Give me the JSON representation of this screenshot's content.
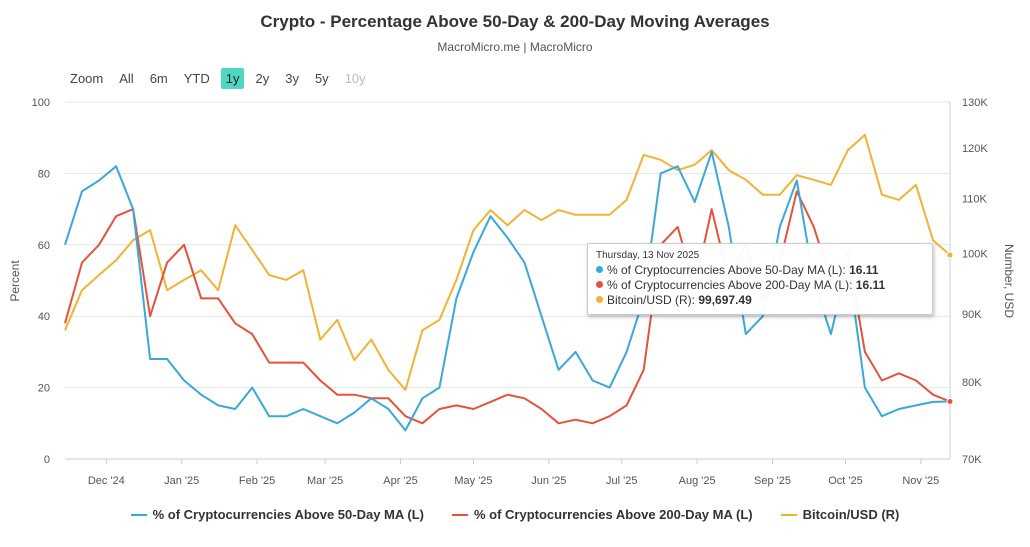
{
  "header": {
    "title": "Crypto - Percentage Above 50-Day & 200-Day Moving Averages",
    "subtitle": "MacroMicro.me | MacroMicro"
  },
  "range_selector": {
    "label": "Zoom",
    "buttons": [
      {
        "label": "All"
      },
      {
        "label": "6m"
      },
      {
        "label": "YTD"
      },
      {
        "label": "1y",
        "selected": true
      },
      {
        "label": "2y"
      },
      {
        "label": "3y"
      },
      {
        "label": "5y"
      },
      {
        "label": "10y",
        "disabled": true
      }
    ]
  },
  "tooltip": {
    "date": "Thursday, 13 Nov 2025",
    "rows": [
      {
        "label": "% of Cryptocurrencies Above 50-Day MA (L): ",
        "value": "16.11"
      },
      {
        "label": "% of Cryptocurrencies Above 200-Day MA (L): ",
        "value": "16.11"
      },
      {
        "label": "Bitcoin/USD (R): ",
        "value": "99,697.49"
      }
    ]
  },
  "chart_data": {
    "type": "line",
    "title": "Crypto - Percentage Above 50-Day & 200-Day Moving Averages",
    "xrange": [
      "2024-11-14",
      "2025-11-13"
    ],
    "x_ticks": [
      {
        "label": "Dec '24",
        "date": "2024-12-01"
      },
      {
        "label": "Jan '25",
        "date": "2025-01-01"
      },
      {
        "label": "Feb '25",
        "date": "2025-02-01"
      },
      {
        "label": "Mar '25",
        "date": "2025-03-01"
      },
      {
        "label": "Apr '25",
        "date": "2025-04-01"
      },
      {
        "label": "May '25",
        "date": "2025-05-01"
      },
      {
        "label": "Jun '25",
        "date": "2025-06-01"
      },
      {
        "label": "Jul '25",
        "date": "2025-07-01"
      },
      {
        "label": "Aug '25",
        "date": "2025-08-01"
      },
      {
        "label": "Sep '25",
        "date": "2025-09-01"
      },
      {
        "label": "Oct '25",
        "date": "2025-10-01"
      },
      {
        "label": "Nov '25",
        "date": "2025-11-01"
      }
    ],
    "y_left": {
      "label": "Percent",
      "range": [
        0,
        100
      ],
      "ticks": [
        "0",
        "20",
        "40",
        "60",
        "80",
        "100"
      ],
      "tick_values": [
        0,
        20,
        40,
        60,
        80,
        100
      ]
    },
    "y_right": {
      "label": "Number, USD",
      "scale": "log",
      "range": [
        70000,
        130000
      ],
      "ticks": [
        "70K",
        "80K",
        "90K",
        "100K",
        "110K",
        "120K",
        "130K"
      ],
      "tick_values": [
        70000,
        80000,
        90000,
        100000,
        110000,
        120000,
        130000
      ]
    },
    "grid": true,
    "legend_position": "bottom",
    "series": [
      {
        "name": "% of Cryptocurrencies Above 50-Day MA (L)",
        "axis": "left",
        "color": "#3aa8d8",
        "values": [
          60,
          75,
          78,
          82,
          70,
          28,
          28,
          22,
          18,
          15,
          14,
          20,
          12,
          12,
          14,
          12,
          10,
          13,
          17,
          14,
          8,
          17,
          20,
          45,
          58,
          68,
          62,
          55,
          40,
          25,
          30,
          22,
          20,
          30,
          45,
          80,
          82,
          72,
          86,
          65,
          35,
          40,
          65,
          78,
          50,
          35,
          55,
          20,
          12,
          14,
          15,
          16,
          16.11
        ]
      },
      {
        "name": "% of Cryptocurrencies Above 200-Day MA (L)",
        "axis": "left",
        "color": "#e4533a",
        "values": [
          38,
          55,
          60,
          68,
          70,
          40,
          55,
          60,
          45,
          45,
          38,
          35,
          27,
          27,
          27,
          22,
          18,
          18,
          17,
          17,
          12,
          10,
          14,
          15,
          14,
          16,
          18,
          17,
          14,
          10,
          11,
          10,
          12,
          15,
          25,
          60,
          65,
          48,
          70,
          50,
          60,
          45,
          55,
          75,
          65,
          50,
          58,
          30,
          22,
          24,
          22,
          18,
          16.11
        ]
      },
      {
        "name": "Bitcoin/USD (R)",
        "axis": "right",
        "color": "#f2b233",
        "values": [
          87500,
          93800,
          96300,
          98800,
          102300,
          104100,
          93800,
          95500,
          97100,
          93800,
          105000,
          100600,
          96300,
          95500,
          97100,
          86100,
          89100,
          83100,
          86100,
          81700,
          78900,
          87500,
          89100,
          95500,
          104100,
          107800,
          105000,
          107800,
          105900,
          107800,
          106900,
          106900,
          106900,
          109700,
          118600,
          117600,
          115500,
          116600,
          119600,
          115500,
          113600,
          110700,
          110700,
          114500,
          113600,
          112600,
          119600,
          122800,
          110700,
          109700,
          112600,
          102300,
          99697.49
        ]
      }
    ]
  },
  "legend": {
    "items": [
      "% of Cryptocurrencies Above 50-Day MA (L)",
      "% of Cryptocurrencies Above 200-Day MA (L)",
      "Bitcoin/USD (R)"
    ]
  }
}
